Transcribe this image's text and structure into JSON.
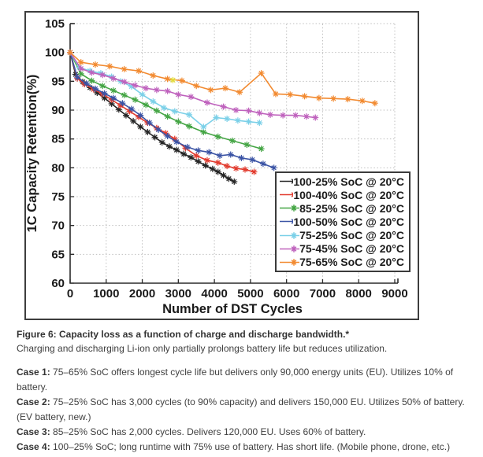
{
  "figure": {
    "caption_title": "Figure 6: Capacity loss as a function of charge and discharge bandwidth.*",
    "caption_subtitle": "Charging and discharging Li-ion only partially prolongs battery life but reduces utilization.",
    "cases": [
      {
        "label": "Case 1:",
        "text": " 75–65% SoC offers longest cycle life but delivers only 90,000 energy units (EU). Utilizes 10% of battery."
      },
      {
        "label": "Case 2:",
        "text": " 75–25% SoC has 3,000 cycles (to 90% capacity) and delivers 150,000 EU. Utilizes 50% of battery. (EV battery, new.)"
      },
      {
        "label": "Case 3:",
        "text": " 85–25% SoC has 2,000 cycles. Delivers 120,000 EU. Uses 60% of battery."
      },
      {
        "label": "Case 4:",
        "text": " 100–25% SoC; long runtime with 75% use of battery. Has short life. (Mobile phone, drone, etc.)"
      }
    ]
  },
  "chart_data": {
    "type": "line",
    "title": "",
    "xlabel": "Number of DST Cycles",
    "ylabel": "1C Capacity Retention(%)",
    "xlim": [
      0,
      9200
    ],
    "ylim": [
      60,
      105
    ],
    "xticks": [
      0,
      1000,
      2000,
      3000,
      4000,
      5000,
      6000,
      7000,
      8000,
      9000
    ],
    "yticks": [
      60,
      65,
      70,
      75,
      80,
      85,
      90,
      95,
      100,
      105
    ],
    "grid": "dotted",
    "grid_color": "#bfbfbf",
    "axis_color": "#2b2b2b",
    "tick_label_color": "#1a1a1a",
    "marker": "asterisk",
    "legend_position": "inside lower-right",
    "series": [
      {
        "name": "100-25% SoC @ 20°C",
        "color": "#262626",
        "x": [
          0,
          150,
          350,
          550,
          750,
          950,
          1150,
          1350,
          1550,
          1750,
          1950,
          2150,
          2350,
          2550,
          2750,
          2950,
          3150,
          3350,
          3550,
          3750,
          3950,
          4100,
          4250,
          4400,
          4550
        ],
        "y": [
          100,
          96.2,
          94.9,
          93.9,
          93.0,
          92.1,
          91.1,
          90.1,
          89.1,
          88.1,
          87.1,
          86.2,
          85.3,
          84.4,
          83.7,
          83.1,
          82.4,
          81.8,
          81.1,
          80.4,
          79.8,
          79.3,
          78.7,
          78.1,
          77.6
        ]
      },
      {
        "name": "100-40% SoC @ 20°C",
        "color": "#e23b2e",
        "x": [
          0,
          200,
          400,
          650,
          900,
          1150,
          1400,
          1650,
          1900,
          2150,
          2400,
          2650,
          2900,
          3200,
          3500,
          3800,
          4100,
          4350,
          4600,
          4850,
          5100
        ],
        "y": [
          100,
          95.5,
          94.5,
          93.6,
          92.8,
          91.8,
          90.8,
          89.8,
          88.8,
          87.8,
          86.9,
          86.0,
          85.0,
          83.4,
          82.1,
          81.3,
          80.9,
          80.3,
          79.9,
          79.7,
          79.3
        ]
      },
      {
        "name": "85-25% SoC @ 20°C",
        "color": "#44a544",
        "x": [
          0,
          300,
          600,
          900,
          1200,
          1500,
          1800,
          2100,
          2400,
          2700,
          3000,
          3300,
          3700,
          4100,
          4500,
          4900,
          5300
        ],
        "y": [
          100,
          96.3,
          95.1,
          94.2,
          93.4,
          92.6,
          91.8,
          90.9,
          89.9,
          88.9,
          88.0,
          87.2,
          86.2,
          85.4,
          84.7,
          84.0,
          83.3
        ]
      },
      {
        "name": "100-50% SoC @ 20°C",
        "color": "#3b54a5",
        "x": [
          0,
          200,
          450,
          700,
          950,
          1200,
          1450,
          1700,
          1950,
          2200,
          2450,
          2700,
          2950,
          3250,
          3550,
          3850,
          4150,
          4450,
          4750,
          5050,
          5350,
          5650
        ],
        "y": [
          100,
          95.7,
          94.6,
          93.7,
          92.9,
          92.1,
          91.2,
          90.2,
          89.1,
          87.8,
          86.6,
          85.5,
          84.5,
          83.6,
          83.0,
          82.7,
          82.1,
          82.3,
          81.7,
          81.4,
          80.7,
          80.0
        ]
      },
      {
        "name": "75-25% SoC @ 20°C",
        "color": "#7bd0e8",
        "x": [
          0,
          250,
          550,
          850,
          1150,
          1400,
          1700,
          2000,
          2300,
          2600,
          2900,
          3300,
          3700,
          4050,
          4350,
          4650,
          4950,
          5250
        ],
        "y": [
          100,
          97.4,
          96.8,
          96.4,
          95.8,
          95.0,
          94.1,
          92.7,
          91.5,
          90.4,
          89.8,
          89.2,
          87.1,
          88.7,
          88.5,
          88.2,
          88.0,
          87.8
        ]
      },
      {
        "name": "75-45% SoC @ 20°C",
        "color": "#bf62bd",
        "x": [
          0,
          300,
          600,
          900,
          1200,
          1500,
          1800,
          2100,
          2400,
          2700,
          3000,
          3350,
          3800,
          4250,
          4600,
          4950,
          5250,
          5550,
          5900,
          6250,
          6550,
          6800
        ],
        "y": [
          100,
          97.2,
          96.5,
          96.1,
          95.5,
          94.9,
          94.3,
          93.8,
          93.5,
          93.3,
          92.7,
          92.3,
          91.3,
          90.6,
          90.0,
          89.9,
          89.5,
          89.2,
          89.1,
          89.1,
          88.9,
          88.7
        ]
      },
      {
        "name": "75-65% SoC @ 20°C",
        "color": "#f28a30",
        "x": [
          0,
          300,
          700,
          1100,
          1500,
          1900,
          2300,
          2700,
          3100,
          3500,
          3900,
          4300,
          4700,
          5300,
          5700,
          6100,
          6500,
          6900,
          7300,
          7700,
          8100,
          8450
        ],
        "y": [
          100,
          98.3,
          97.9,
          97.6,
          97.1,
          96.8,
          96.0,
          95.4,
          95.1,
          94.2,
          93.5,
          93.8,
          93.1,
          96.4,
          92.8,
          92.7,
          92.4,
          92.1,
          92.0,
          91.9,
          91.6,
          91.2
        ]
      }
    ],
    "stray_marker": {
      "x": 2850,
      "y": 95.2,
      "color": "#e3dc3a"
    }
  }
}
